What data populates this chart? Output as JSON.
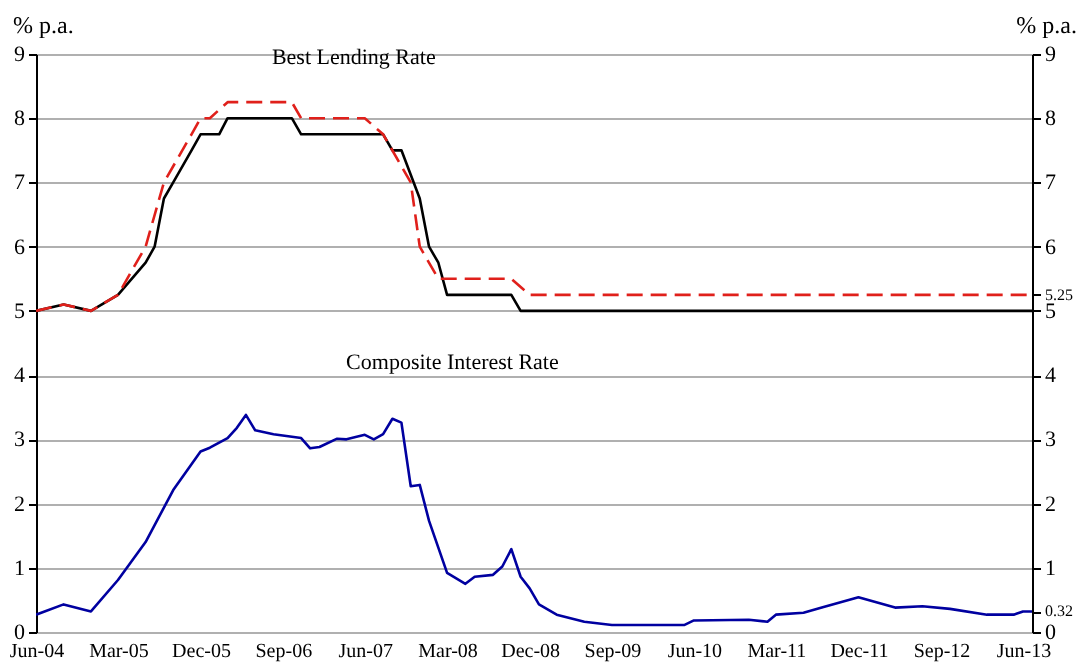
{
  "chart_data": {
    "type": "line",
    "ylabel": "% p.a.",
    "y2label": "% p.a.",
    "xlim": [
      "2004-06",
      "2013-07"
    ],
    "xticks": [
      {
        "value": "2004-06",
        "label": "Jun-04"
      },
      {
        "value": "2005-03",
        "label": "Mar-05"
      },
      {
        "value": "2005-12",
        "label": "Dec-05"
      },
      {
        "value": "2006-09",
        "label": "Sep-06"
      },
      {
        "value": "2007-06",
        "label": "Jun-07"
      },
      {
        "value": "2008-03",
        "label": "Mar-08"
      },
      {
        "value": "2008-12",
        "label": "Dec-08"
      },
      {
        "value": "2009-09",
        "label": "Sep-09"
      },
      {
        "value": "2010-06",
        "label": "Jun-10"
      },
      {
        "value": "2011-03",
        "label": "Mar-11"
      },
      {
        "value": "2011-12",
        "label": "Dec-11"
      },
      {
        "value": "2012-09",
        "label": "Sep-12"
      },
      {
        "value": "2013-06",
        "label": "Jun-13"
      }
    ],
    "ylim": [
      0,
      9
    ],
    "yticks": [
      0,
      1,
      2,
      3,
      4,
      5,
      6,
      7,
      8,
      9
    ],
    "y2lim": [
      0,
      9
    ],
    "y2ticks": [
      0,
      0.32,
      1,
      2,
      3,
      4,
      5,
      5.25,
      6,
      7,
      8,
      9
    ],
    "grid": "y",
    "series": [
      {
        "color": "#000000",
        "line_style": "solid",
        "x": [
          "2004-06",
          "2004-09",
          "2004-12",
          "2005-03",
          "2005-06",
          "2005-07",
          "2005-08",
          "2005-09",
          "2005-11",
          "2005-12",
          "2006-02",
          "2006-03",
          "2006-10",
          "2006-11",
          "2007-08",
          "2007-09",
          "2007-10",
          "2007-12",
          "2008-01",
          "2008-02",
          "2008-03",
          "2008-10",
          "2008-11",
          "2013-07"
        ],
        "values": [
          5.0,
          5.1,
          5.0,
          5.25,
          5.75,
          6.0,
          6.75,
          7.0,
          7.5,
          7.75,
          7.75,
          8.0,
          8.0,
          7.75,
          7.75,
          7.5,
          7.5,
          6.75,
          6.0,
          5.75,
          5.25,
          5.25,
          5.0,
          5.0
        ]
      },
      {
        "color": "#e0201b",
        "line_style": "dashed",
        "x": [
          "2004-06",
          "2004-09",
          "2004-12",
          "2005-03",
          "2005-06",
          "2005-08",
          "2005-11",
          "2005-12",
          "2006-01",
          "2006-03",
          "2006-10",
          "2006-11",
          "2007-06",
          "2007-08",
          "2007-11",
          "2007-12",
          "2008-02",
          "2008-10",
          "2008-12",
          "2013-07"
        ],
        "values": [
          5.0,
          5.1,
          5.0,
          5.25,
          6.0,
          7.0,
          7.75,
          8.0,
          8.0,
          8.25,
          8.25,
          8.0,
          8.0,
          7.75,
          7.0,
          6.0,
          5.5,
          5.5,
          5.25,
          5.25
        ]
      },
      {
        "color": "#0000a0",
        "line_style": "solid",
        "x": [
          "2004-06",
          "2004-09",
          "2004-12",
          "2005-03",
          "2005-06",
          "2005-09",
          "2005-12",
          "2006-01",
          "2006-03",
          "2006-04",
          "2006-05",
          "2006-06",
          "2006-08",
          "2006-11",
          "2006-12",
          "2007-01",
          "2007-03",
          "2007-04",
          "2007-06",
          "2007-07",
          "2007-08",
          "2007-09",
          "2007-10",
          "2007-11",
          "2007-12",
          "2008-01",
          "2008-03",
          "2008-05",
          "2008-06",
          "2008-08",
          "2008-09",
          "2008-10",
          "2008-11",
          "2008-12",
          "2009-01",
          "2009-03",
          "2009-06",
          "2009-09",
          "2010-05",
          "2010-06",
          "2010-12",
          "2011-02",
          "2011-03",
          "2011-06",
          "2011-08",
          "2011-12",
          "2012-04",
          "2012-07",
          "2012-10",
          "2013-02",
          "2013-05",
          "2013-06",
          "2013-07"
        ],
        "values": [
          0.27,
          0.43,
          0.32,
          0.81,
          1.4,
          2.21,
          2.81,
          2.87,
          3.02,
          3.18,
          3.38,
          3.14,
          3.08,
          3.02,
          2.86,
          2.88,
          3.01,
          3.0,
          3.07,
          3.0,
          3.08,
          3.32,
          3.26,
          2.27,
          2.29,
          1.73,
          0.92,
          0.75,
          0.86,
          0.89,
          1.02,
          1.29,
          0.86,
          0.68,
          0.43,
          0.27,
          0.16,
          0.11,
          0.11,
          0.18,
          0.19,
          0.16,
          0.27,
          0.3,
          0.38,
          0.54,
          0.38,
          0.4,
          0.36,
          0.27,
          0.27,
          0.32,
          0.32
        ]
      }
    ],
    "annotations": [
      {
        "text": "Best Lending Rate",
        "x": "2007-07",
        "y": 8.0
      },
      {
        "text": "Composite Interest Rate",
        "x": "2007-09",
        "y": 3.32
      }
    ]
  }
}
